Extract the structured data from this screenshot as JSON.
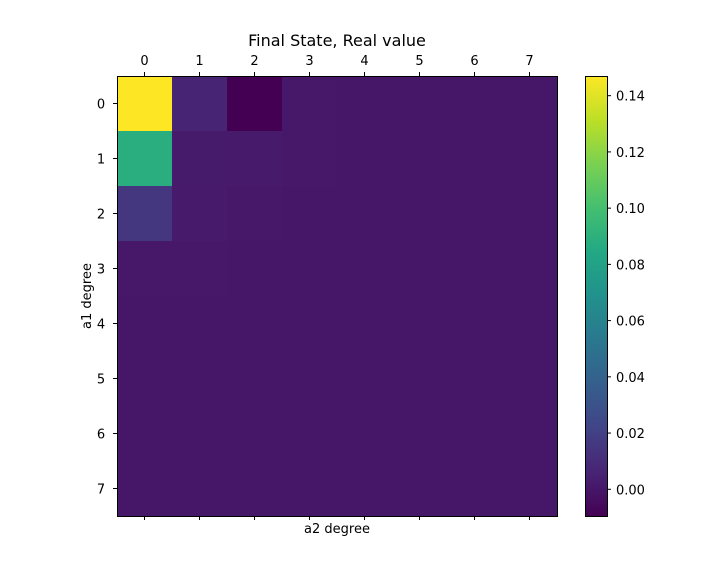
{
  "chart_data": {
    "type": "heatmap",
    "title": "Final State, Real value",
    "xlabel": "a2 degree",
    "ylabel": "a1 degree",
    "x_ticks": [
      "0",
      "1",
      "2",
      "3",
      "4",
      "5",
      "6",
      "7"
    ],
    "y_ticks": [
      "0",
      "1",
      "2",
      "3",
      "4",
      "5",
      "6",
      "7"
    ],
    "x_ticks_position": "top",
    "colormap": "viridis",
    "vmin": -0.0095,
    "vmax": 0.147,
    "colorbar_ticks": [
      "0.14",
      "0.12",
      "0.10",
      "0.08",
      "0.06",
      "0.04",
      "0.02",
      "0.00"
    ],
    "colorbar_tick_values": [
      0.14,
      0.12,
      0.1,
      0.08,
      0.06,
      0.04,
      0.02,
      0.0
    ],
    "values": [
      [
        0.147,
        0.006,
        -0.0095,
        0.0005,
        0.0,
        0.0,
        0.0,
        0.0
      ],
      [
        0.088,
        0.002,
        0.0015,
        0.0003,
        0.0,
        0.0,
        0.0,
        0.0
      ],
      [
        0.015,
        0.0015,
        0.0005,
        0.0002,
        0.0,
        0.0,
        0.0,
        0.0
      ],
      [
        0.0008,
        0.0004,
        0.0002,
        0.0001,
        0.0,
        0.0,
        0.0,
        0.0
      ],
      [
        0.0002,
        0.0001,
        0.0,
        0.0,
        0.0,
        0.0,
        0.0,
        0.0
      ],
      [
        0.0001,
        0.0,
        0.0,
        0.0,
        0.0,
        0.0,
        0.0,
        0.0
      ],
      [
        0.0,
        0.0,
        0.0,
        0.0,
        0.0,
        0.0,
        0.0,
        0.0
      ],
      [
        0.0,
        0.0,
        0.0,
        0.0,
        0.0,
        0.0,
        0.0,
        0.0
      ]
    ]
  }
}
